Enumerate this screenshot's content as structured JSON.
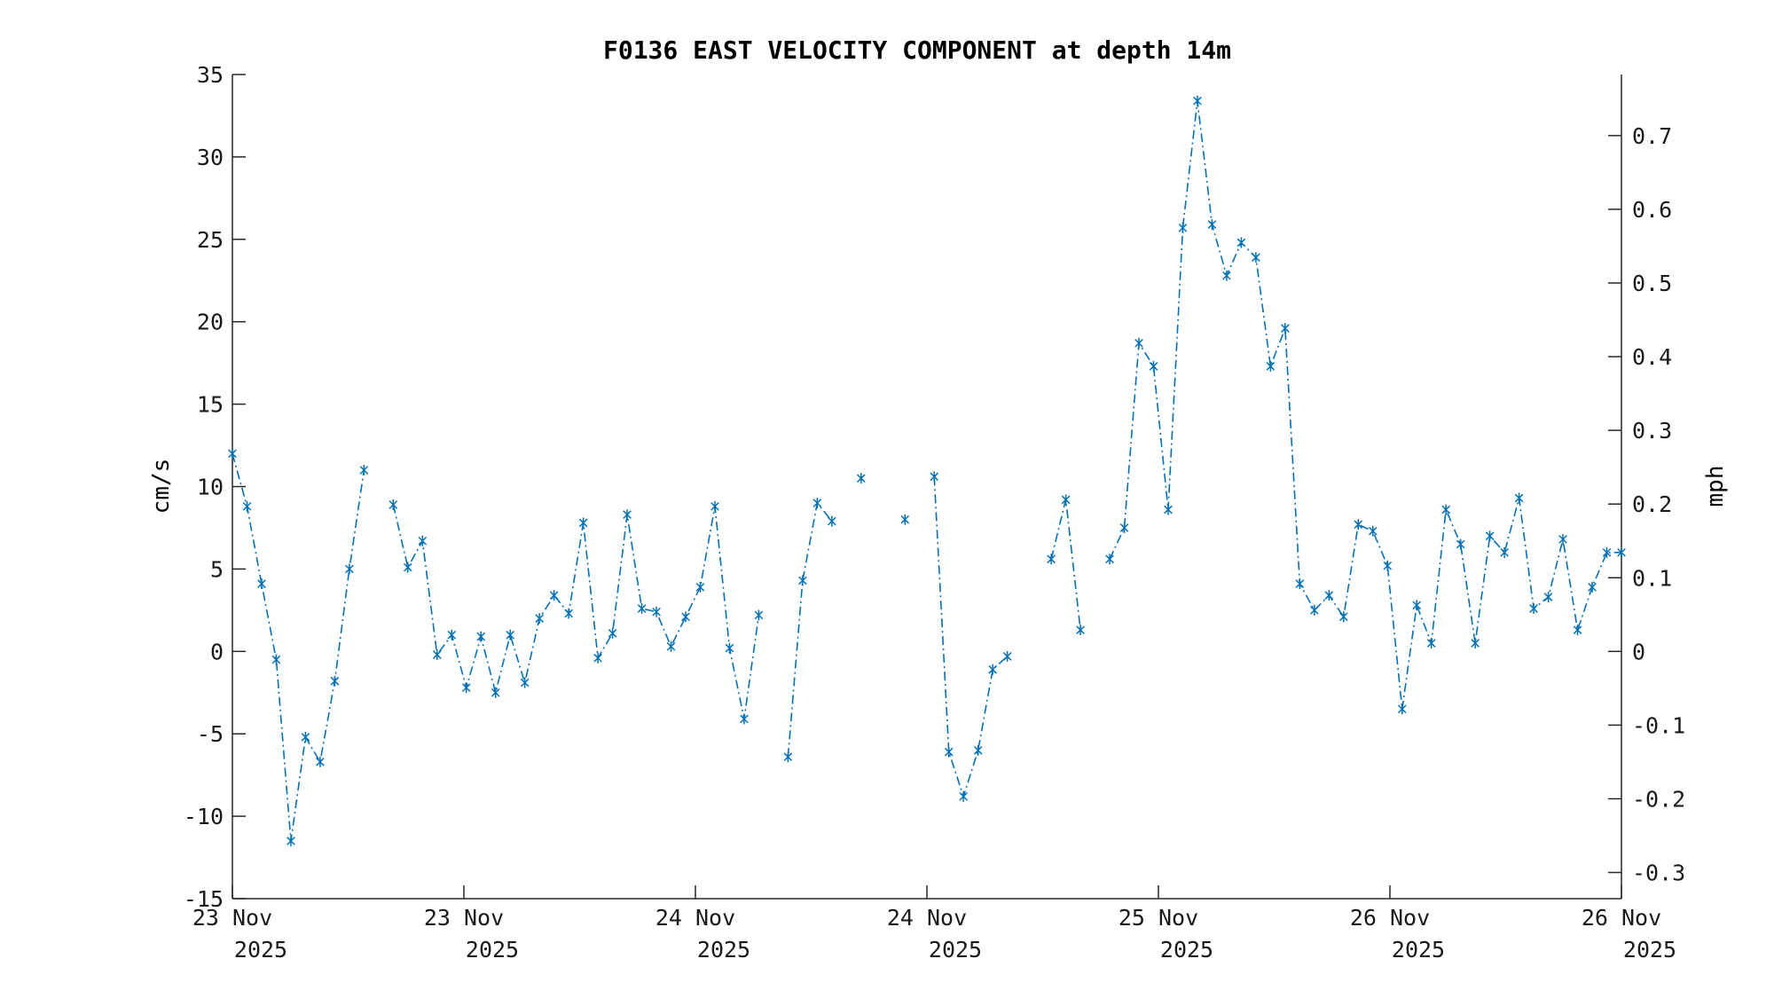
{
  "chart_data": {
    "type": "line",
    "title": "F0136 EAST VELOCITY COMPONENT at depth 14m",
    "xlabel": "",
    "ylabel": "cm/s",
    "ylabel_right": "mph",
    "ylim": [
      -15,
      35
    ],
    "ylim_right": [
      -0.3355,
      0.7829
    ],
    "y_ticks": [
      -15,
      -10,
      -5,
      0,
      5,
      10,
      15,
      20,
      25,
      30,
      35
    ],
    "y_ticks_right": [
      -0.3,
      -0.2,
      -0.1,
      0,
      0.1,
      0.2,
      0.3,
      0.4,
      0.5,
      0.6,
      0.7
    ],
    "x_tick_labels": [
      [
        "23 Nov",
        "2025"
      ],
      [
        "23 Nov",
        "2025"
      ],
      [
        "24 Nov",
        "2025"
      ],
      [
        "24 Nov",
        "2025"
      ],
      [
        "25 Nov",
        "2025"
      ],
      [
        "26 Nov",
        "2025"
      ],
      [
        "26 Nov",
        "2025"
      ]
    ],
    "x_unit": "index (≈1 h per sample, 96 samples)",
    "grid": false,
    "marker": "asterisk",
    "line_style": "dash-dot",
    "color": "#0072BD",
    "series": [
      {
        "values": [
          12.0,
          8.8,
          4.1,
          -0.5,
          -11.5,
          -5.2,
          -6.7,
          -1.8,
          5.0,
          11.0,
          null,
          8.9,
          5.1,
          6.7,
          -0.2,
          1.0,
          -2.2,
          0.9,
          -2.5,
          1.0,
          -1.9,
          2.0,
          3.4,
          2.3,
          7.8,
          -0.4,
          1.1,
          8.3,
          2.6,
          2.4,
          0.3,
          2.1,
          3.9,
          8.8,
          0.2,
          -4.1,
          2.2,
          null,
          -6.4,
          4.3,
          9.0,
          7.9,
          null,
          10.5,
          null,
          null,
          8.0,
          null,
          10.6,
          -6.1,
          -8.8,
          -6.0,
          -1.1,
          -0.3,
          null,
          null,
          5.6,
          9.2,
          1.3,
          null,
          5.6,
          7.5,
          18.7,
          17.3,
          8.6,
          25.7,
          33.4,
          25.9,
          22.8,
          24.8,
          23.9,
          17.3,
          19.6,
          4.1,
          2.5,
          3.4,
          2.1,
          7.7,
          7.3,
          5.2,
          -3.5,
          2.8,
          0.5,
          8.6,
          6.5,
          0.5,
          7.0,
          6.0,
          9.3,
          2.6,
          3.3,
          6.8,
          1.3,
          3.9,
          6.0,
          6.0
        ]
      }
    ]
  }
}
